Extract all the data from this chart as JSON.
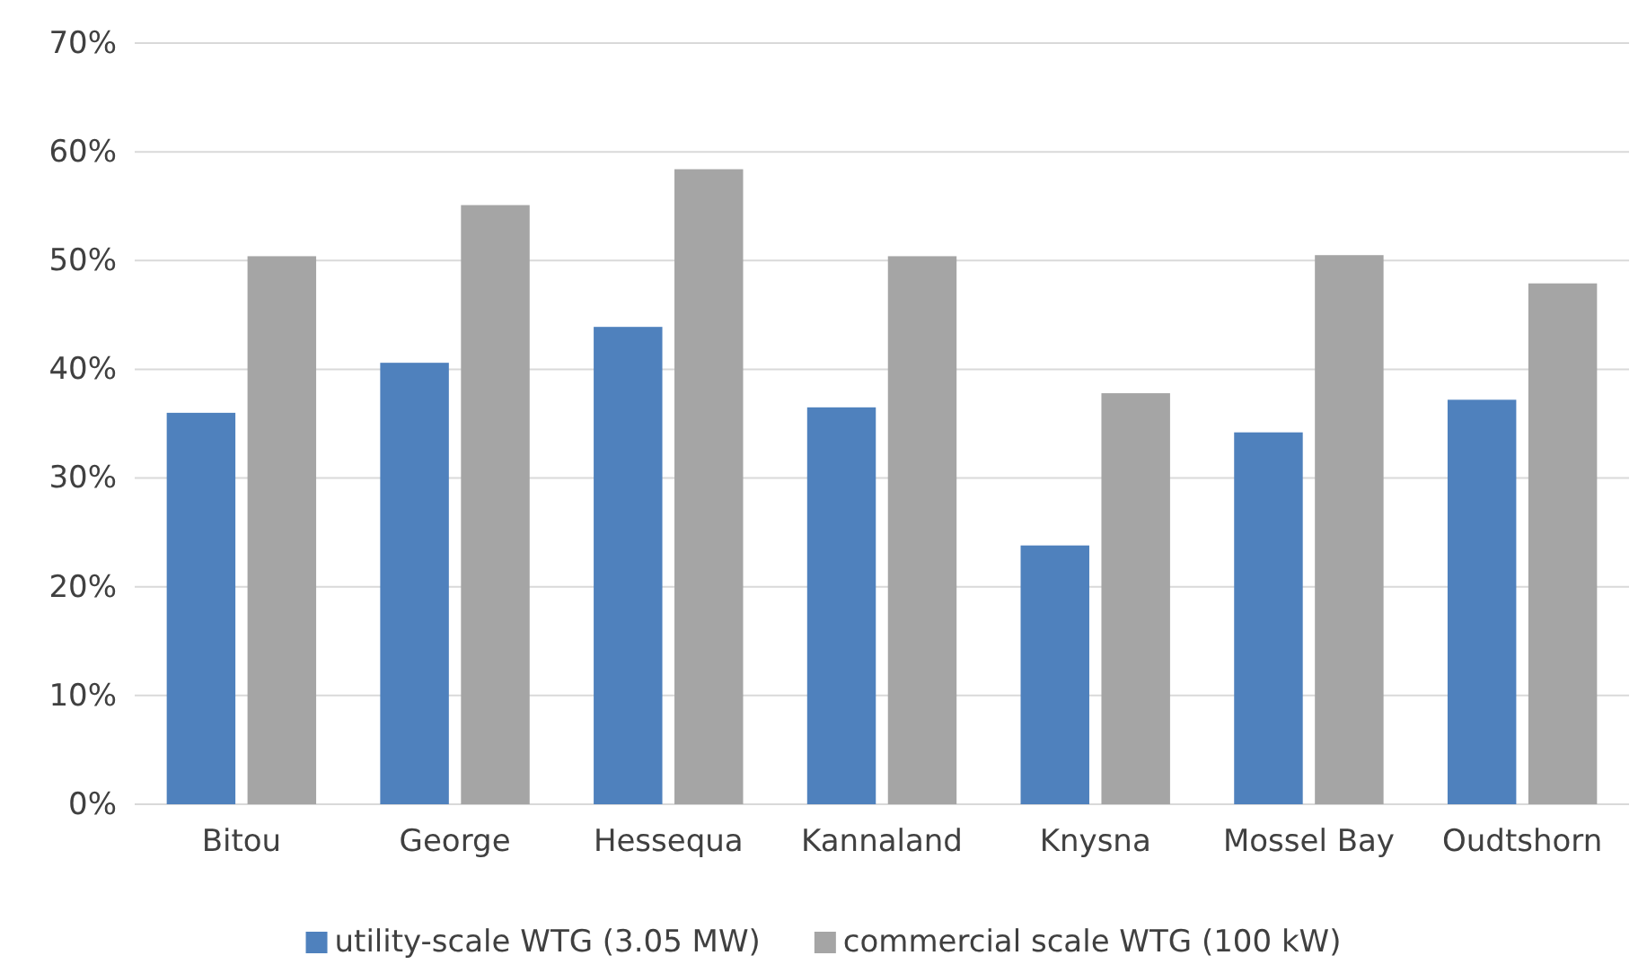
{
  "chart_data": {
    "type": "bar",
    "categories": [
      "Bitou",
      "George",
      "Hessequa",
      "Kannaland",
      "Knysna",
      "Mossel Bay",
      "Oudtshorn"
    ],
    "series": [
      {
        "name": "utility-scale WTG (3.05 MW)",
        "color": "#4f81bd",
        "values": [
          36.0,
          40.6,
          43.9,
          36.5,
          23.8,
          34.2,
          37.2
        ]
      },
      {
        "name": "commercial scale WTG (100 kW)",
        "color": "#a5a5a5",
        "values": [
          50.4,
          55.1,
          58.4,
          50.4,
          37.8,
          50.5,
          47.9
        ]
      }
    ],
    "ylim": [
      0,
      70
    ],
    "yticks": [
      {
        "value": 0,
        "label": "0%"
      },
      {
        "value": 10,
        "label": "10%"
      },
      {
        "value": 20,
        "label": "20%"
      },
      {
        "value": 30,
        "label": "30%"
      },
      {
        "value": 40,
        "label": "40%"
      },
      {
        "value": 50,
        "label": "50%"
      },
      {
        "value": 60,
        "label": "60%"
      },
      {
        "value": 70,
        "label": "70%"
      }
    ],
    "grid": "y",
    "legend": "bottom"
  }
}
